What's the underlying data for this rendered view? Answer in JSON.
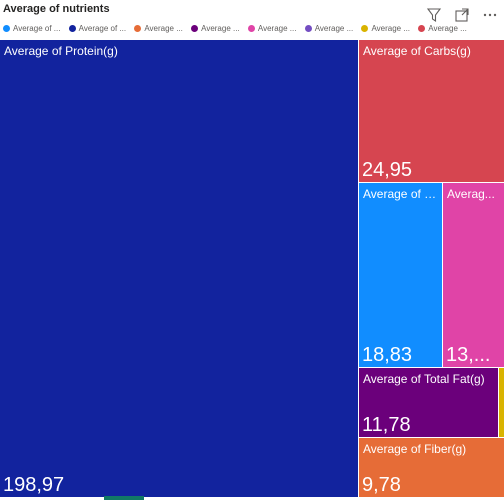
{
  "title": "Average of nutrients",
  "toolbar": {
    "filter_icon": "filter-icon",
    "focus_icon": "focus-mode-icon",
    "more_icon": "more-options-icon"
  },
  "legend": [
    {
      "label": "Average of ...",
      "color": "#118dff"
    },
    {
      "label": "Average of ...",
      "color": "#12239e"
    },
    {
      "label": "Average ...",
      "color": "#e66c37"
    },
    {
      "label": "Average ...",
      "color": "#6b007b"
    },
    {
      "label": "Average ...",
      "color": "#e044a7"
    },
    {
      "label": "Average ...",
      "color": "#744ec2"
    },
    {
      "label": "Average ...",
      "color": "#d9b300"
    },
    {
      "label": "Average ...",
      "color": "#d64550"
    }
  ],
  "chart_data": {
    "type": "treemap",
    "items": [
      {
        "name": "Average of Protein(g)",
        "label": "Average of Protein(g)",
        "value": 198.97,
        "value_text": "198,97",
        "color": "#12239e"
      },
      {
        "name": "Average of Carbs(g)",
        "label": "Average of Carbs(g)",
        "value": 24.95,
        "value_text": "24,95",
        "color": "#d64550"
      },
      {
        "name": "Average of S...",
        "label": "Average of S...",
        "value": 18.83,
        "value_text": "18,83",
        "color": "#118dff"
      },
      {
        "name": "Averag...",
        "label": "Averag...",
        "value": 13.0,
        "value_text": "13,...",
        "color": "#e044a7"
      },
      {
        "name": "Average of Total Fat(g)",
        "label": "Average of Total Fat(g)",
        "value": 11.78,
        "value_text": "11,78",
        "color": "#6b007b"
      },
      {
        "name": "Average of Fiber(g)",
        "label": "Average of Fiber(g)",
        "value": 9.78,
        "value_text": "9,78",
        "color": "#e66c37"
      }
    ]
  }
}
